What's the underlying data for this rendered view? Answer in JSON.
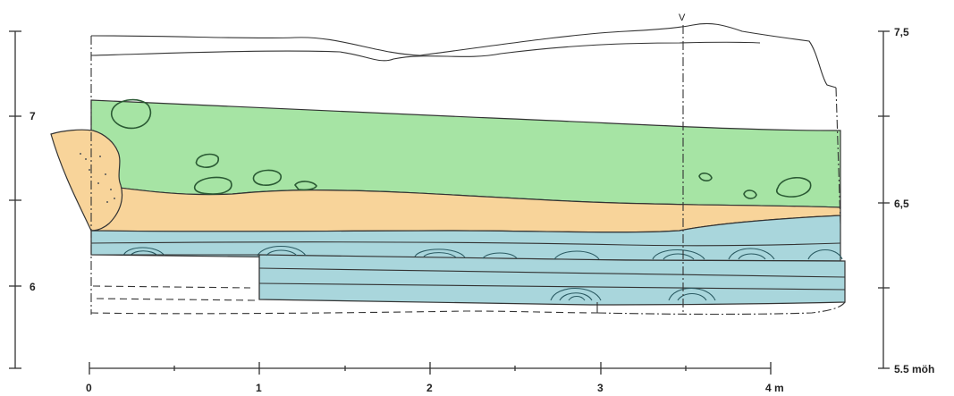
{
  "left_axis": {
    "labels": [
      "7",
      "6"
    ]
  },
  "right_axis": {
    "labels": [
      "7,5",
      "6,5",
      "5.5 möh"
    ]
  },
  "bottom_axis": {
    "labels": [
      "0",
      "1",
      "2",
      "3",
      "4 m"
    ]
  },
  "section_marker": "V",
  "colors": {
    "green_layer": "#a6e4a4",
    "sand_layer": "#f8d49a",
    "blue_layer": "#a9d6dc",
    "line": "#333333",
    "stone_outline": "#2b5a34"
  }
}
